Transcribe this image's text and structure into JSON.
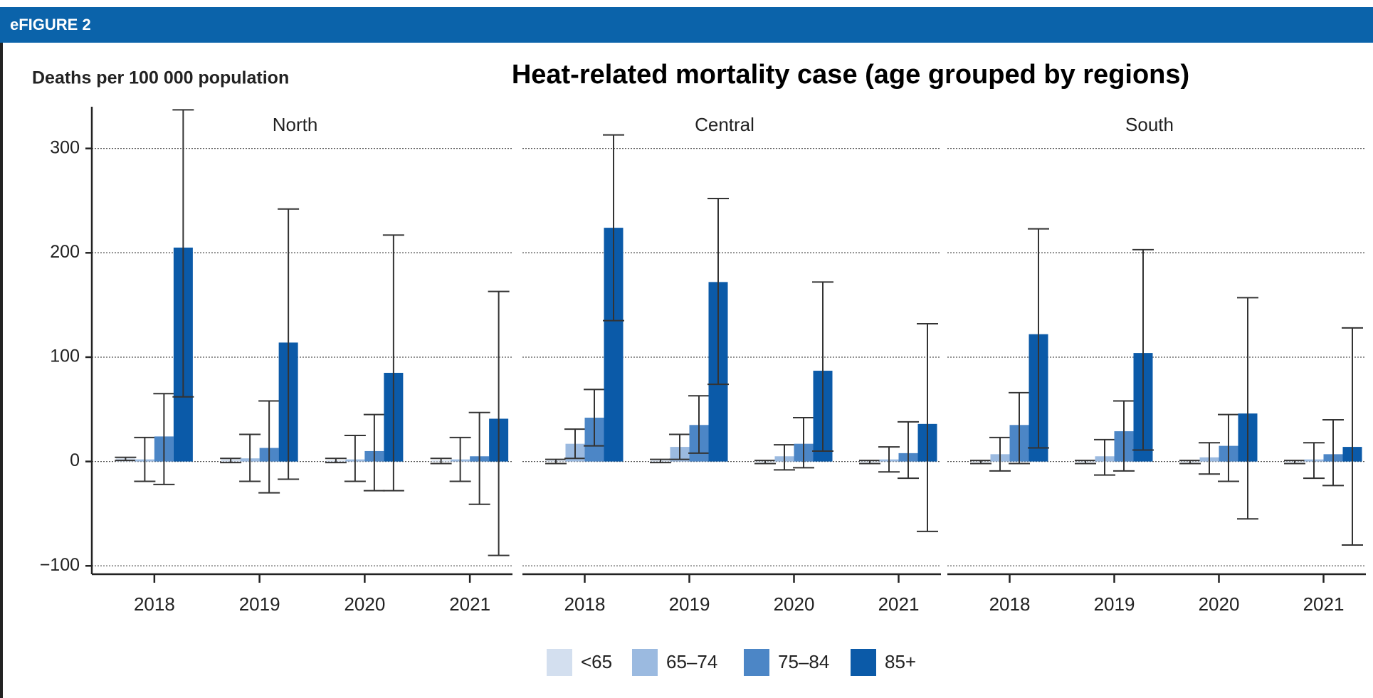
{
  "header": "eFIGURE 2",
  "chart_data": {
    "type": "bar",
    "title": "Heat-related mortality case (age grouped by regions)",
    "y_label": "Deaths per 100 000 population",
    "ylim": [
      -108,
      340
    ],
    "yticks": [
      {
        "value": -100,
        "label": "−100"
      },
      0,
      100,
      200,
      300
    ],
    "grid": true,
    "categories": [
      "2018",
      "2019",
      "2020",
      "2021"
    ],
    "series": [
      {
        "name": "<65",
        "color": "#d3dfef"
      },
      {
        "name": "65–74",
        "color": "#9bbae0"
      },
      {
        "name": "75–84",
        "color": "#4c86c6"
      },
      {
        "name": "85+",
        "color": "#0b5aa8"
      }
    ],
    "panels": [
      {
        "title": "North",
        "series": [
          {
            "values": [
              3,
              2,
              1,
              1
            ],
            "lower": [
              1,
              -1,
              -1,
              -2
            ],
            "upper": [
              4,
              3,
              3,
              3
            ]
          },
          {
            "values": [
              2,
              3,
              2,
              2
            ],
            "lower": [
              -19,
              -19,
              -19,
              -19
            ],
            "upper": [
              23,
              26,
              25,
              23
            ]
          },
          {
            "values": [
              24,
              13,
              10,
              5
            ],
            "lower": [
              -22,
              -30,
              -28,
              -41
            ],
            "upper": [
              65,
              58,
              45,
              47
            ]
          },
          {
            "values": [
              205,
              114,
              85,
              41
            ],
            "lower": [
              62,
              -17,
              -28,
              -90
            ],
            "upper": [
              337,
              242,
              217,
              163
            ]
          }
        ]
      },
      {
        "title": "Central",
        "series": [
          {
            "values": [
              1,
              1,
              0,
              0
            ],
            "lower": [
              -2,
              -1,
              -2,
              -2
            ],
            "upper": [
              2,
              2,
              1,
              1
            ]
          },
          {
            "values": [
              17,
              14,
              5,
              2
            ],
            "lower": [
              3,
              2,
              -8,
              -10
            ],
            "upper": [
              31,
              26,
              16,
              14
            ]
          },
          {
            "values": [
              42,
              35,
              17,
              8
            ],
            "lower": [
              15,
              8,
              -6,
              -16
            ],
            "upper": [
              69,
              63,
              42,
              38
            ]
          },
          {
            "values": [
              224,
              172,
              87,
              36
            ],
            "lower": [
              135,
              74,
              10,
              -67
            ],
            "upper": [
              313,
              252,
              172,
              132
            ]
          }
        ]
      },
      {
        "title": "South",
        "series": [
          {
            "values": [
              0,
              0,
              0,
              0
            ],
            "lower": [
              -2,
              -2,
              -2,
              -2
            ],
            "upper": [
              1,
              1,
              1,
              1
            ]
          },
          {
            "values": [
              7,
              5,
              4,
              2
            ],
            "lower": [
              -9,
              -13,
              -12,
              -16
            ],
            "upper": [
              23,
              21,
              18,
              18
            ]
          },
          {
            "values": [
              35,
              29,
              15,
              7
            ],
            "lower": [
              -2,
              -9,
              -19,
              -23
            ],
            "upper": [
              66,
              58,
              45,
              40
            ]
          },
          {
            "values": [
              122,
              104,
              46,
              14
            ],
            "lower": [
              13,
              11,
              -55,
              -80
            ],
            "upper": [
              223,
              203,
              157,
              128
            ]
          }
        ]
      }
    ]
  }
}
